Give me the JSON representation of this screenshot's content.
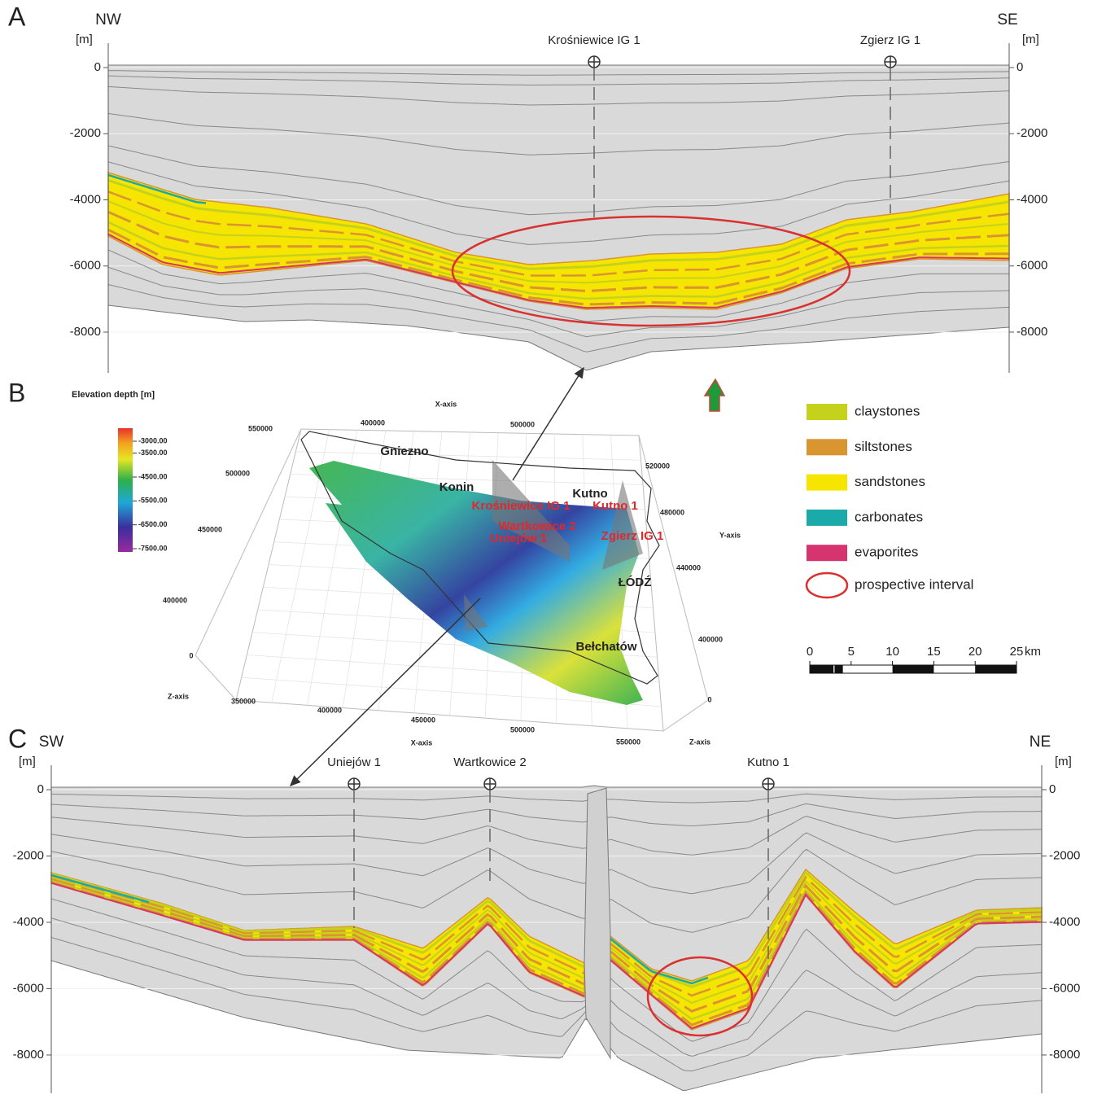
{
  "panel_a": {
    "label": "A",
    "left_direction": "NW",
    "right_direction": "SE",
    "unit": "[m]",
    "ylim": [
      -9000,
      0
    ],
    "yticks": [
      0,
      -2000,
      -4000,
      -6000,
      -8000
    ],
    "wells": [
      "Krośniewice IG 1",
      "Zgierz IG 1"
    ]
  },
  "panel_b": {
    "label": "B",
    "colorbar_title": "Elevation depth [m]",
    "colorbar_ticks": [
      {
        "value": -3000,
        "label": "-3000.00"
      },
      {
        "value": -3500,
        "label": "-3500.00"
      },
      {
        "value": -4500,
        "label": "-4500.00"
      },
      {
        "value": -5500,
        "label": "-5500.00"
      },
      {
        "value": -6500,
        "label": "-6500.00"
      },
      {
        "value": -7500,
        "label": "-7500.00"
      }
    ],
    "axis_labels": [
      "X-axis",
      "400000",
      "500000",
      "550000",
      "500000",
      "450000",
      "400000",
      "0",
      "520000",
      "480000",
      "Y-axis",
      "440000",
      "400000",
      "0",
      "Z-axis",
      "350000",
      "400000",
      "450000",
      "500000",
      "550000",
      "X-axis",
      "Z-axis"
    ],
    "places": [
      "Gniezno",
      "Konin",
      "Kutno",
      "ŁÓDŹ",
      "Bełchatów"
    ],
    "wells": [
      "Krośniewice IG 1",
      "Kutno 1",
      "Wartkowice 2",
      "Uniejów 1",
      "Zgierz IG 1"
    ]
  },
  "legend": {
    "items": [
      {
        "name": "claystones",
        "color": "#c5d21c"
      },
      {
        "name": "siltstones",
        "color": "#d9952f"
      },
      {
        "name": "sandstones",
        "color": "#f6e500"
      },
      {
        "name": "carbonates",
        "color": "#1ba9a9"
      },
      {
        "name": "evaporites",
        "color": "#d5346e"
      }
    ],
    "outline": {
      "name": "prospective interval",
      "color": "#d93030"
    }
  },
  "scale_bar": {
    "ticks": [
      0,
      5,
      10,
      15,
      20,
      25
    ],
    "unit": "km"
  },
  "panel_c": {
    "label": "C",
    "left_direction": "SW",
    "right_direction": "NE",
    "unit": "[m]",
    "ylim": [
      -9000,
      0
    ],
    "yticks": [
      0,
      -2000,
      -4000,
      -6000,
      -8000
    ],
    "wells": [
      "Uniejów 1",
      "Wartkowice 2",
      "Kutno 1"
    ]
  }
}
